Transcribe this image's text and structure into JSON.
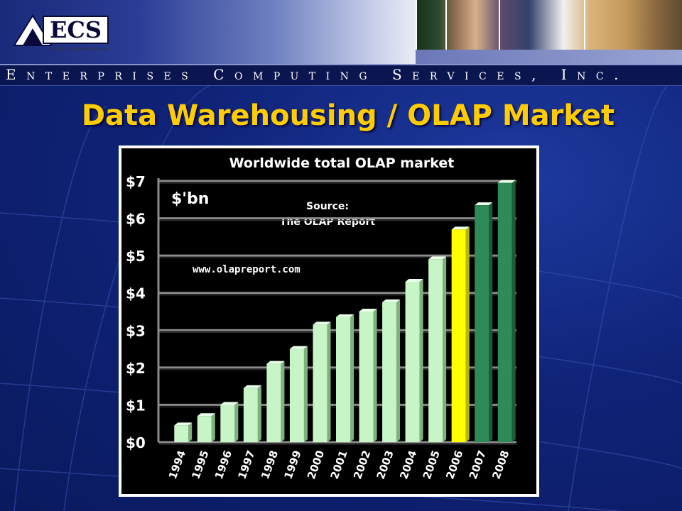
{
  "header": {
    "logo_text": "ECS",
    "logo_tagline": "Creative Software Solutions",
    "company_name": "Enterprises Computing Services, Inc."
  },
  "slide": {
    "title": "Data Warehousing / OLAP  Market"
  },
  "colors": {
    "title": "#ffcc00",
    "bar_actual": "#c8f5c8",
    "bar_2006": "#ffff00",
    "bar_forecast": "#2e8b57",
    "chart_bg": "#000000"
  },
  "chart_data": {
    "type": "bar",
    "title": "Worldwide total OLAP market",
    "ylabel": "$'bn",
    "source_label": "Source:",
    "source_name": "The OLAP Report",
    "url": "www.olapreport.com",
    "categories": [
      "1994",
      "1995",
      "1996",
      "1997",
      "1998",
      "1999",
      "2000",
      "2001",
      "2002",
      "2003",
      "2004",
      "2005",
      "2006",
      "2007",
      "2008"
    ],
    "values": [
      0.45,
      0.7,
      1.0,
      1.45,
      2.1,
      2.5,
      3.15,
      3.35,
      3.5,
      3.75,
      4.3,
      4.9,
      5.7,
      6.35,
      6.95
    ],
    "bar_types": [
      "actual",
      "actual",
      "actual",
      "actual",
      "actual",
      "actual",
      "actual",
      "actual",
      "actual",
      "actual",
      "actual",
      "actual",
      "estimate",
      "forecast",
      "forecast"
    ],
    "yticks": [
      "$0",
      "$1",
      "$2",
      "$3",
      "$4",
      "$5",
      "$6",
      "$7"
    ],
    "ylim": [
      0,
      7
    ],
    "grid": true,
    "legend": "none"
  }
}
